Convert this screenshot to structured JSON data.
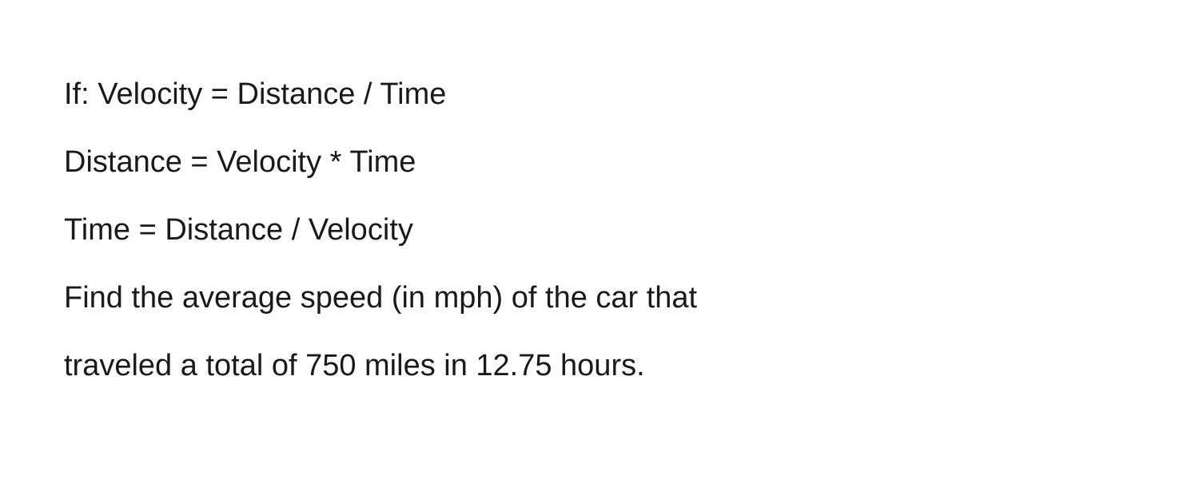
{
  "problem": {
    "lines": [
      "If: Velocity = Distance / Time",
      "Distance = Velocity * Time",
      "Time = Distance / Velocity",
      "Find the average speed (in mph) of the car that",
      "traveled a total of 750 miles in 12.75 hours."
    ],
    "text_color": "#1a1a1a",
    "background_color": "#ffffff",
    "font_size": 38,
    "line_gap": 28,
    "font_family": "-apple-system, sans-serif"
  }
}
